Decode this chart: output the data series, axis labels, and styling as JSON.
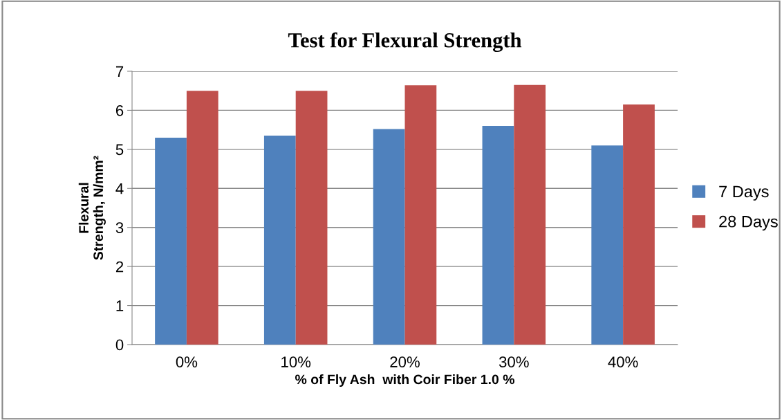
{
  "chart_data": {
    "type": "bar",
    "title": "Test for Flexural Strength",
    "xlabel": "% of Fly Ash  with Coir Fiber 1.0 %",
    "ylabel": "Flexural\nStrength, N/mm²",
    "categories": [
      "0%",
      "10%",
      "20%",
      "30%",
      "40%"
    ],
    "series": [
      {
        "name": "7 Days",
        "color": "#4f81bd",
        "values": [
          5.3,
          5.35,
          5.52,
          5.6,
          5.1
        ]
      },
      {
        "name": "28 Days",
        "color": "#c0504d",
        "values": [
          6.5,
          6.5,
          6.64,
          6.65,
          6.15
        ]
      }
    ],
    "ylim": [
      0,
      7
    ],
    "yticks": [
      0,
      1,
      2,
      3,
      4,
      5,
      6,
      7
    ],
    "grid": "y",
    "legend": "right"
  }
}
